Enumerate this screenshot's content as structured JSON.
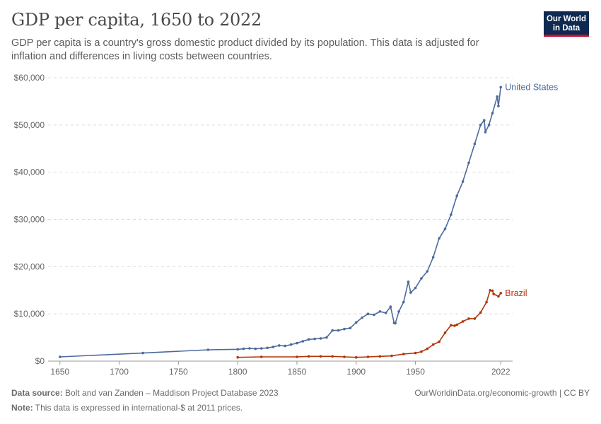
{
  "title": "GDP per capita, 1650 to 2022",
  "subtitle": "GDP per capita is a country's gross domestic product divided by its population. This data is adjusted for inflation and differences in living costs between countries.",
  "logo": {
    "line1": "Our World",
    "line2": "in Data"
  },
  "footer": {
    "source_label": "Data source:",
    "source_text": "Bolt and van Zanden – Maddison Project Database 2023",
    "note_label": "Note:",
    "note_text": "This data is expressed in international-$ at 2011 prices.",
    "right_text": "OurWorldinData.org/economic-growth | CC BY"
  },
  "chart_data": {
    "type": "line",
    "title": "GDP per capita, 1650 to 2022",
    "xlim": [
      1640,
      2032
    ],
    "ylim": [
      0,
      60000
    ],
    "x_ticks": [
      1650,
      1700,
      1750,
      1800,
      1850,
      1900,
      1950,
      2022
    ],
    "x_tick_labels": [
      "1650",
      "1700",
      "1750",
      "1800",
      "1850",
      "1900",
      "1950",
      "2022"
    ],
    "y_ticks": [
      0,
      10000,
      20000,
      30000,
      40000,
      50000,
      60000
    ],
    "y_tick_labels": [
      "$0",
      "$10,000",
      "$20,000",
      "$30,000",
      "$40,000",
      "$50,000",
      "$60,000"
    ],
    "grid": "horizontal dashed",
    "series": [
      {
        "name": "United States",
        "color": "#4c6a9c",
        "x": [
          1650,
          1720,
          1775,
          1800,
          1805,
          1810,
          1815,
          1820,
          1825,
          1830,
          1835,
          1840,
          1845,
          1850,
          1855,
          1860,
          1865,
          1870,
          1875,
          1880,
          1885,
          1890,
          1895,
          1900,
          1905,
          1910,
          1915,
          1920,
          1925,
          1929,
          1932,
          1933,
          1936,
          1940,
          1944,
          1946,
          1950,
          1955,
          1960,
          1965,
          1970,
          1975,
          1980,
          1985,
          1990,
          1995,
          2000,
          2005,
          2008,
          2009,
          2012,
          2015,
          2019,
          2020,
          2022
        ],
        "values": [
          900,
          1700,
          2400,
          2500,
          2600,
          2700,
          2600,
          2700,
          2800,
          3000,
          3300,
          3200,
          3500,
          3800,
          4200,
          4600,
          4700,
          4800,
          5000,
          6500,
          6500,
          6800,
          7000,
          8200,
          9200,
          10000,
          9800,
          10500,
          10200,
          11500,
          8100,
          8000,
          10500,
          12500,
          16800,
          14500,
          15500,
          17500,
          19000,
          22000,
          26000,
          28000,
          31000,
          35000,
          38000,
          42000,
          46000,
          50000,
          51000,
          48500,
          50000,
          52500,
          56000,
          54000,
          58000
        ]
      },
      {
        "name": "Brazil",
        "color": "#b13507",
        "x": [
          1800,
          1820,
          1850,
          1860,
          1870,
          1880,
          1890,
          1900,
          1910,
          1920,
          1930,
          1940,
          1950,
          1955,
          1960,
          1965,
          1970,
          1975,
          1980,
          1983,
          1985,
          1990,
          1995,
          2000,
          2005,
          2010,
          2013,
          2015,
          2016,
          2020,
          2022
        ],
        "values": [
          800,
          900,
          900,
          1000,
          1000,
          1000,
          900,
          800,
          900,
          1000,
          1100,
          1500,
          1700,
          2000,
          2600,
          3500,
          4100,
          6000,
          7600,
          7500,
          7700,
          8400,
          9000,
          9000,
          10300,
          12500,
          15000,
          14900,
          14200,
          13700,
          14400
        ]
      }
    ]
  }
}
